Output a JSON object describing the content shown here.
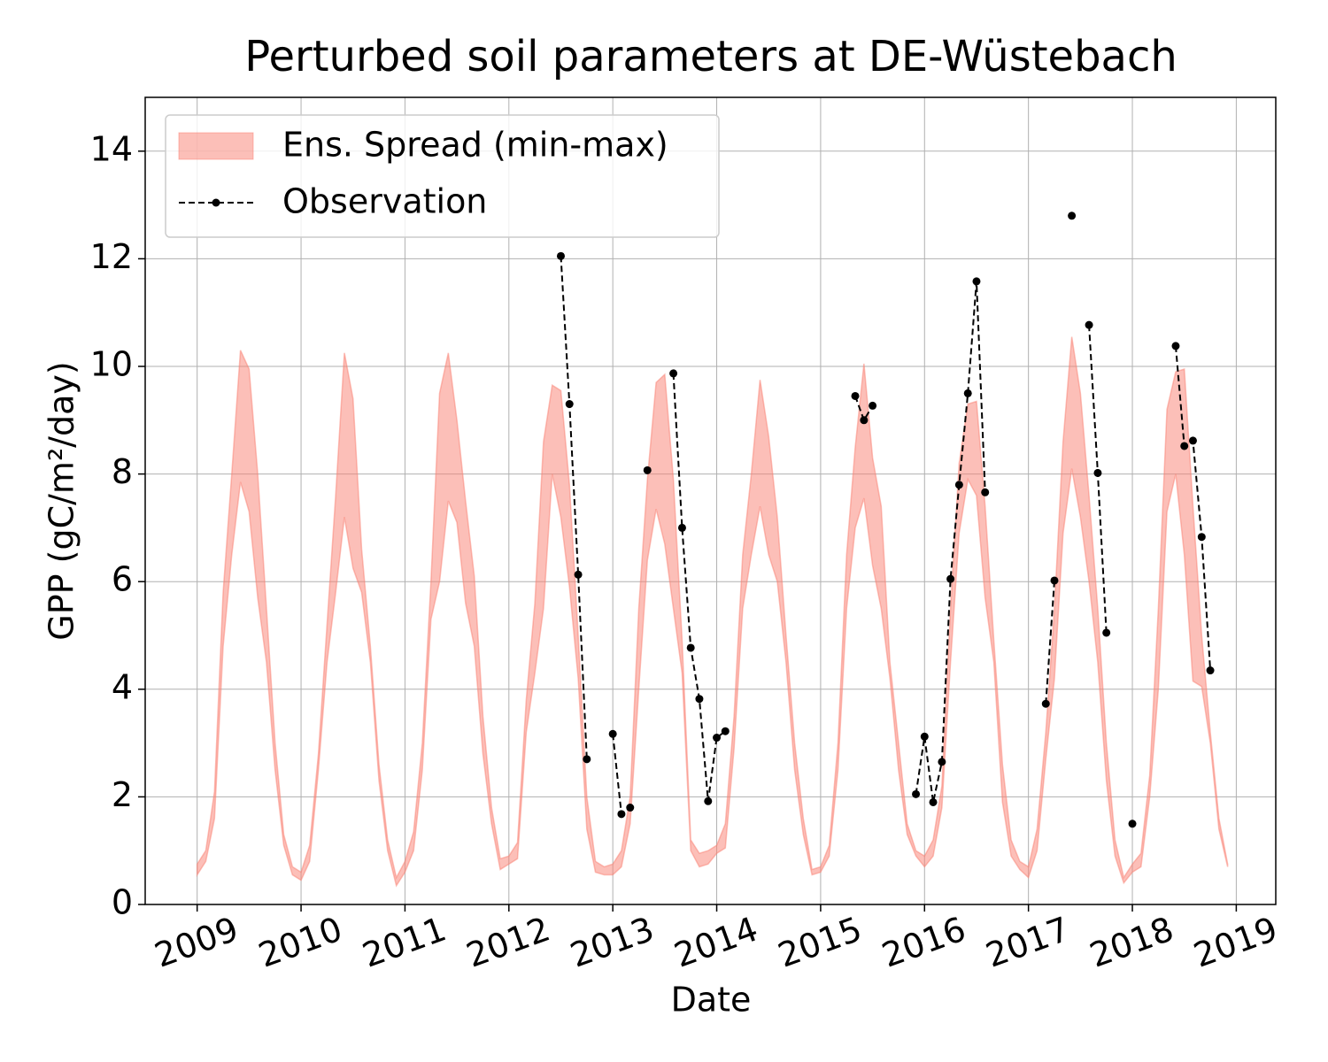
{
  "chart_data": {
    "type": "line",
    "title": "Perturbed soil parameters at DE-Wüstebach",
    "xlabel": "Date",
    "ylabel": "GPP  (gC/m²/day)",
    "x": [
      2009,
      2009.083,
      2009.167,
      2009.25,
      2009.333,
      2009.417,
      2009.5,
      2009.583,
      2009.667,
      2009.75,
      2009.833,
      2009.917,
      2010,
      2010.083,
      2010.167,
      2010.25,
      2010.333,
      2010.417,
      2010.5,
      2010.583,
      2010.667,
      2010.75,
      2010.833,
      2010.917,
      2011,
      2011.083,
      2011.167,
      2011.25,
      2011.333,
      2011.417,
      2011.5,
      2011.583,
      2011.667,
      2011.75,
      2011.833,
      2011.917,
      2012,
      2012.083,
      2012.167,
      2012.25,
      2012.333,
      2012.417,
      2012.5,
      2012.583,
      2012.667,
      2012.75,
      2012.833,
      2012.917,
      2013,
      2013.083,
      2013.167,
      2013.25,
      2013.333,
      2013.417,
      2013.5,
      2013.583,
      2013.667,
      2013.75,
      2013.833,
      2013.917,
      2014,
      2014.083,
      2014.167,
      2014.25,
      2014.333,
      2014.417,
      2014.5,
      2014.583,
      2014.667,
      2014.75,
      2014.833,
      2014.917,
      2015,
      2015.083,
      2015.167,
      2015.25,
      2015.333,
      2015.417,
      2015.5,
      2015.583,
      2015.667,
      2015.75,
      2015.833,
      2015.917,
      2016,
      2016.083,
      2016.167,
      2016.25,
      2016.333,
      2016.417,
      2016.5,
      2016.583,
      2016.667,
      2016.75,
      2016.833,
      2016.917,
      2017,
      2017.083,
      2017.167,
      2017.25,
      2017.333,
      2017.417,
      2017.5,
      2017.583,
      2017.667,
      2017.75,
      2017.833,
      2017.917,
      2018,
      2018.083,
      2018.167,
      2018.25,
      2018.333,
      2018.417,
      2018.5,
      2018.583,
      2018.667,
      2018.75,
      2018.833,
      2018.917
    ],
    "series": [
      {
        "name": "Ens. Spread (min-max)",
        "color": "#fa8072",
        "alpha": 0.5,
        "low": [
          0.55,
          0.8,
          1.6,
          4.8,
          6.5,
          7.85,
          7.3,
          5.7,
          4.5,
          2.5,
          1.1,
          0.55,
          0.45,
          0.8,
          2.5,
          4.5,
          5.8,
          7.2,
          6.25,
          5.8,
          4.5,
          2.3,
          1.0,
          0.35,
          0.6,
          1.0,
          2.5,
          5.3,
          6.0,
          7.5,
          7.1,
          5.6,
          4.8,
          2.8,
          1.5,
          0.65,
          0.75,
          0.85,
          3.2,
          4.3,
          5.5,
          8.0,
          7.2,
          5.9,
          4.2,
          1.4,
          0.6,
          0.55,
          0.55,
          0.7,
          1.5,
          4.0,
          6.4,
          7.35,
          6.7,
          5.5,
          4.3,
          1.0,
          0.7,
          0.75,
          0.95,
          1.05,
          2.9,
          5.5,
          6.5,
          7.4,
          6.5,
          6.0,
          4.5,
          2.5,
          1.3,
          0.55,
          0.6,
          0.9,
          2.5,
          5.5,
          7.0,
          7.55,
          6.3,
          5.5,
          4.2,
          2.5,
          1.3,
          0.9,
          0.7,
          0.9,
          1.8,
          4.5,
          6.9,
          7.9,
          7.6,
          5.7,
          4.5,
          1.9,
          0.9,
          0.65,
          0.5,
          1.0,
          2.7,
          4.2,
          6.9,
          8.1,
          7.2,
          6.0,
          4.5,
          2.3,
          0.9,
          0.4,
          0.6,
          0.7,
          2.0,
          4.0,
          7.3,
          8.0,
          6.5,
          4.15,
          4.05,
          3.0,
          1.4,
          0.7
        ],
        "high": [
          0.75,
          1.0,
          2.1,
          5.8,
          8.0,
          10.3,
          9.95,
          8.0,
          5.5,
          3.0,
          1.3,
          0.7,
          0.6,
          1.1,
          2.8,
          5.2,
          7.6,
          10.25,
          9.4,
          6.6,
          4.8,
          2.6,
          1.2,
          0.5,
          0.8,
          1.35,
          3.0,
          6.0,
          9.5,
          10.25,
          9.0,
          7.5,
          6.1,
          3.5,
          1.8,
          0.85,
          0.9,
          1.15,
          3.8,
          5.6,
          8.6,
          9.65,
          9.55,
          7.8,
          5.0,
          2.0,
          0.8,
          0.7,
          0.75,
          1.0,
          2.0,
          5.5,
          7.9,
          9.7,
          9.85,
          7.9,
          4.9,
          1.2,
          0.95,
          1.0,
          1.1,
          1.5,
          3.5,
          6.5,
          8.0,
          9.75,
          8.7,
          7.2,
          5.0,
          3.0,
          1.6,
          0.65,
          0.7,
          1.1,
          3.0,
          6.5,
          8.5,
          10.05,
          8.3,
          7.4,
          4.5,
          3.0,
          1.5,
          1.0,
          0.9,
          1.2,
          2.2,
          5.5,
          8.2,
          9.3,
          9.35,
          7.4,
          4.9,
          2.6,
          1.2,
          0.8,
          0.7,
          1.4,
          3.2,
          5.5,
          8.6,
          10.55,
          9.5,
          7.6,
          5.5,
          3.0,
          1.2,
          0.5,
          0.75,
          0.95,
          2.4,
          5.5,
          9.2,
          9.9,
          9.95,
          7.4,
          5.0,
          3.2,
          1.6,
          0.75
        ]
      },
      {
        "name": "Observation",
        "color": "#000000",
        "dashed": true,
        "marker": "o",
        "values": [
          null,
          null,
          null,
          null,
          null,
          null,
          null,
          null,
          null,
          null,
          null,
          null,
          null,
          null,
          null,
          null,
          null,
          null,
          null,
          null,
          null,
          null,
          null,
          null,
          null,
          null,
          null,
          null,
          null,
          null,
          null,
          null,
          null,
          null,
          null,
          null,
          null,
          null,
          null,
          null,
          null,
          null,
          12.05,
          9.3,
          6.13,
          2.7,
          null,
          null,
          3.17,
          1.68,
          1.8,
          null,
          8.07,
          null,
          null,
          9.87,
          7.0,
          4.77,
          3.82,
          1.92,
          3.1,
          3.22,
          null,
          null,
          null,
          null,
          null,
          null,
          null,
          null,
          null,
          null,
          null,
          null,
          null,
          null,
          9.45,
          9.0,
          9.27,
          null,
          null,
          null,
          null,
          2.05,
          3.12,
          1.9,
          2.65,
          6.05,
          7.8,
          9.5,
          11.58,
          7.66,
          null,
          null,
          null,
          null,
          null,
          null,
          3.73,
          6.02,
          null,
          12.8,
          null,
          10.77,
          8.02,
          5.05,
          null,
          null,
          1.5,
          null,
          null,
          null,
          null,
          10.38,
          8.52,
          8.62,
          6.83,
          4.35,
          null,
          null
        ]
      }
    ],
    "xlim": [
      2008.5,
      2019.38
    ],
    "xticks": [
      2009,
      2010,
      2011,
      2012,
      2013,
      2014,
      2015,
      2016,
      2017,
      2018,
      2019
    ],
    "ylim": [
      0,
      15
    ],
    "yticks": [
      0,
      2,
      4,
      6,
      8,
      10,
      12,
      14
    ],
    "grid": true,
    "legend": "upper left"
  }
}
